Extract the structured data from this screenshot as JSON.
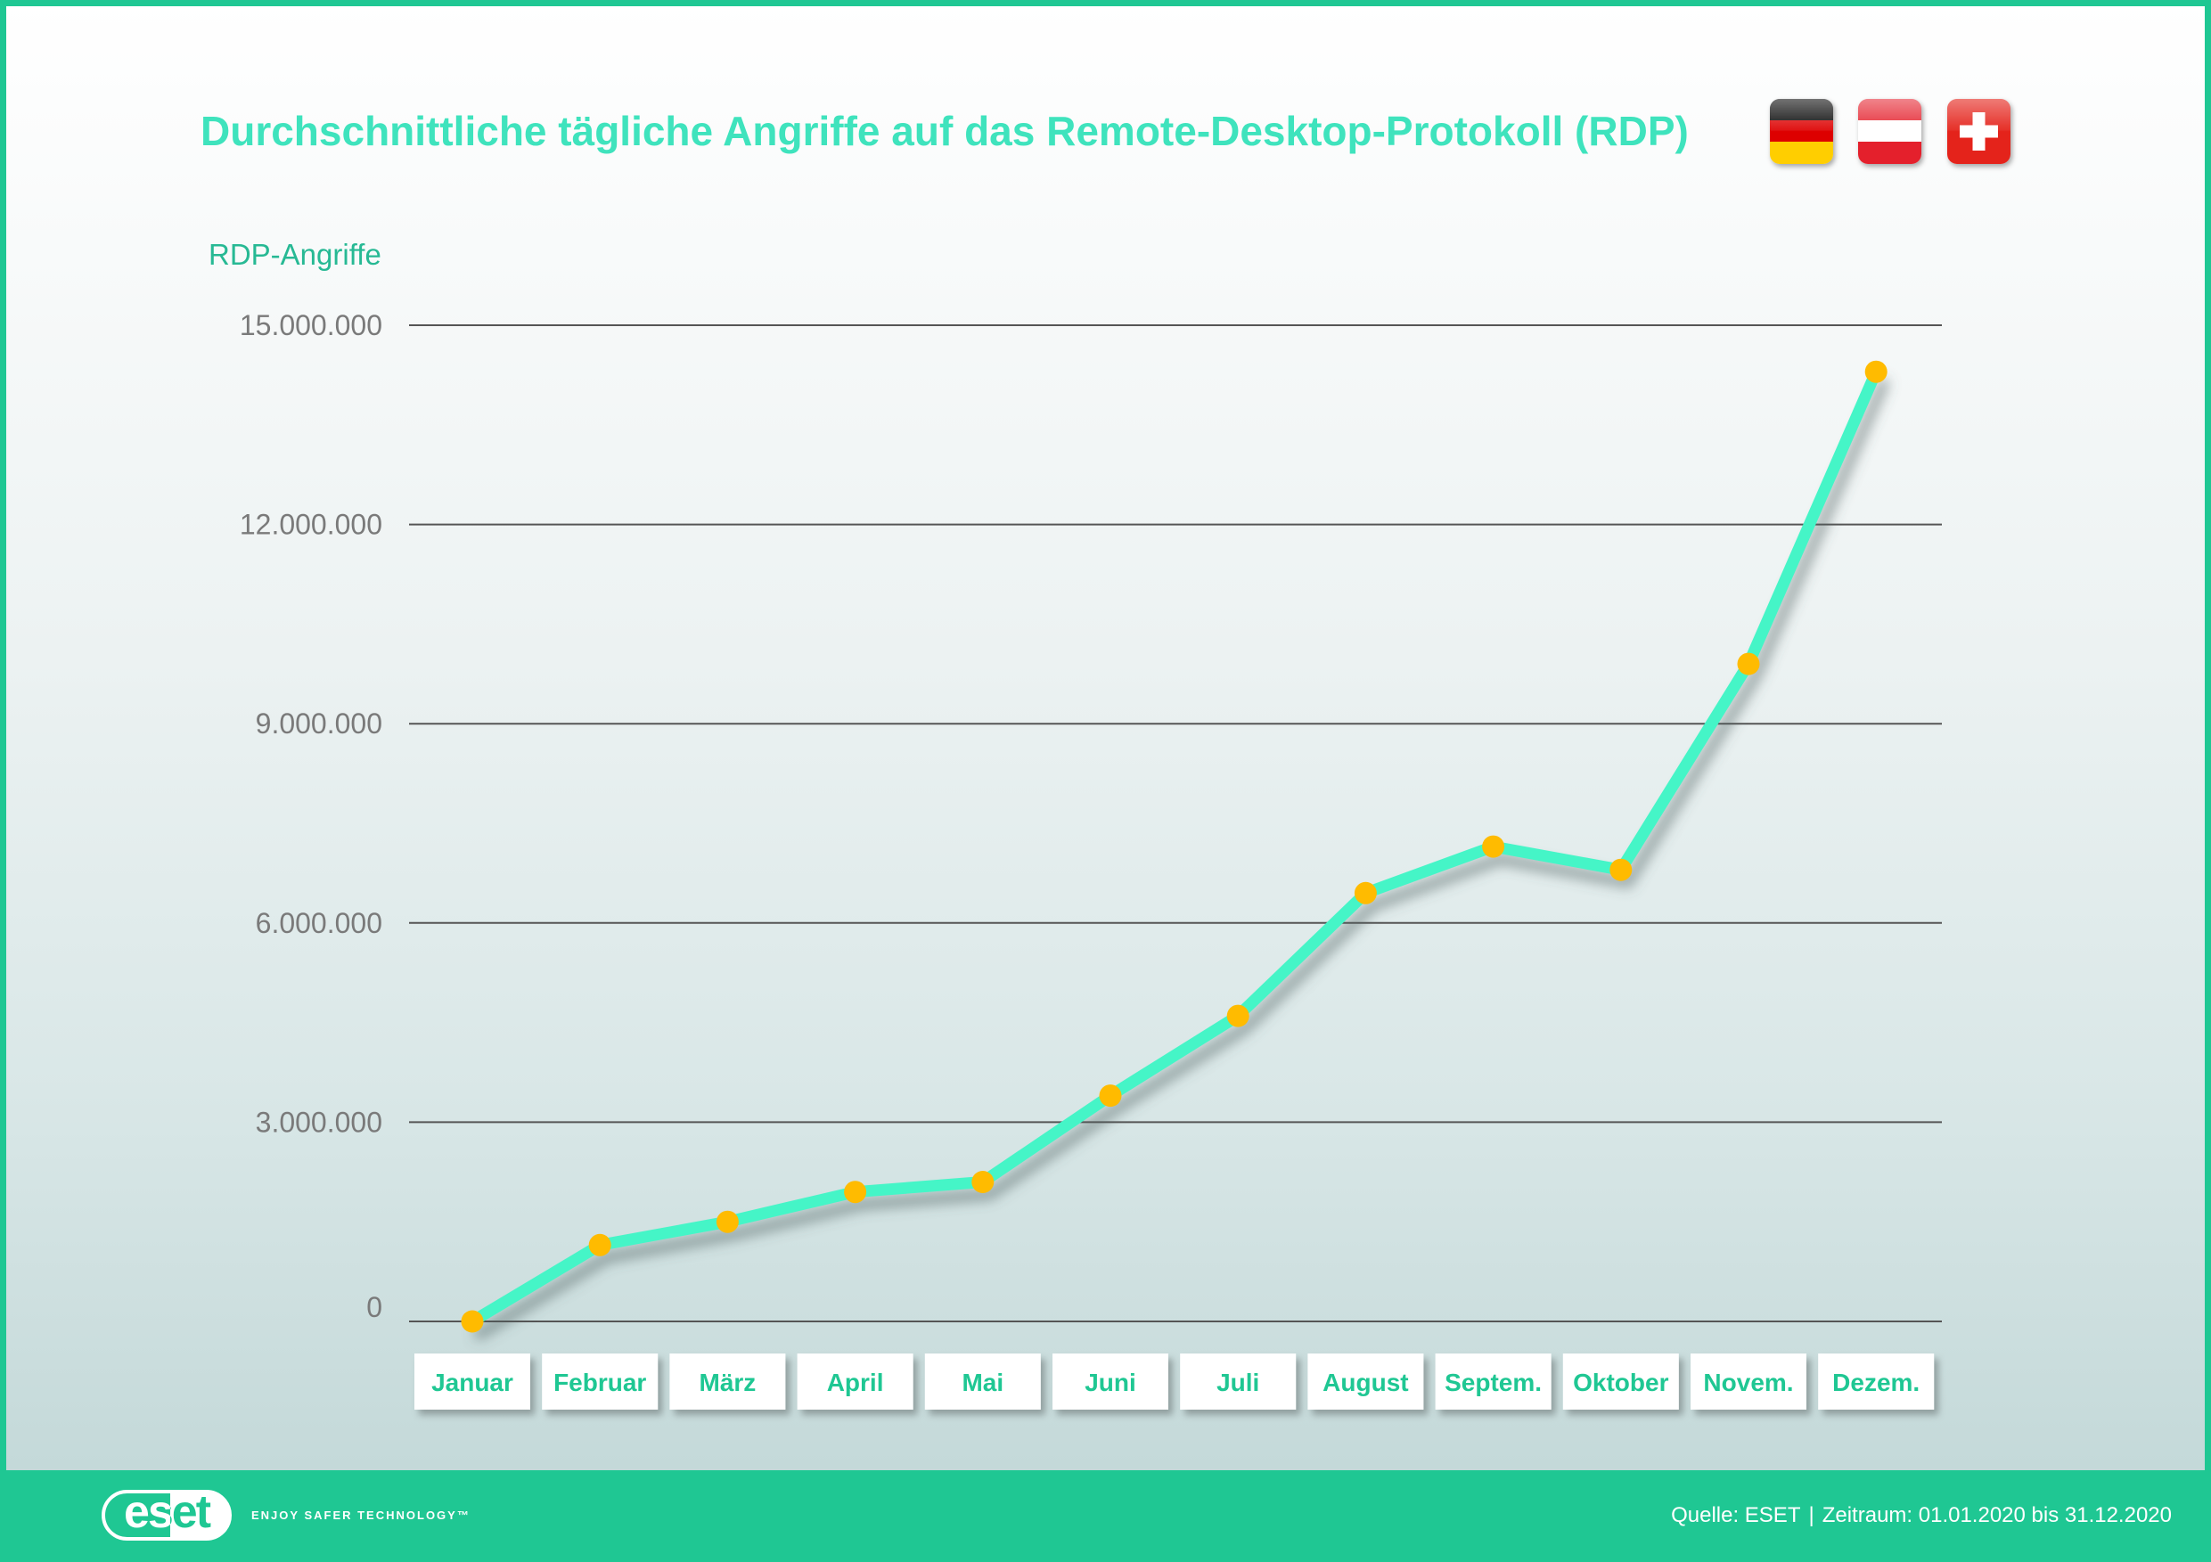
{
  "chart_data": {
    "type": "line",
    "title": "Durchschnittliche tägliche Angriffe auf das Remote-Desktop-Protokoll (RDP)",
    "xlabel": "",
    "ylabel": "RDP-Angriffe",
    "categories": [
      "Januar",
      "Februar",
      "März",
      "April",
      "Mai",
      "Juni",
      "Juli",
      "August",
      "Septem.",
      "Oktober",
      "Novem.",
      "Dezem."
    ],
    "series": [
      {
        "values": [
          0,
          1150000,
          1500000,
          1950000,
          2100000,
          3400000,
          4600000,
          6450000,
          7150000,
          6800000,
          9900000,
          14300000
        ]
      }
    ],
    "ylim": [
      0,
      15000000
    ],
    "yticks": [
      0,
      3000000,
      6000000,
      9000000,
      12000000,
      15000000
    ],
    "ytick_labels": [
      "0",
      "3.000.000",
      "6.000.000",
      "9.000.000",
      "12.000.000",
      "15.000.000"
    ],
    "grid": true,
    "colors": {
      "title": "#3fe3bd",
      "line": "#45f5c7",
      "points": "#ffbb00",
      "ylabel": "#27b994",
      "category_labels": "#1fc793",
      "ticks": "#7a7a7a",
      "gridlines": "#555555"
    }
  },
  "flags": [
    {
      "icon": "germany-flag-icon"
    },
    {
      "icon": "austria-flag-icon"
    },
    {
      "icon": "switzerland-flag-icon"
    }
  ],
  "footer": {
    "logo_text": "eset",
    "tagline": "ENJOY SAFER TECHNOLOGY™",
    "source": "Quelle: ESET",
    "separator": "|",
    "period": "Zeitraum: 01.01.2020 bis 31.12.2020",
    "background": "#1fc793"
  }
}
